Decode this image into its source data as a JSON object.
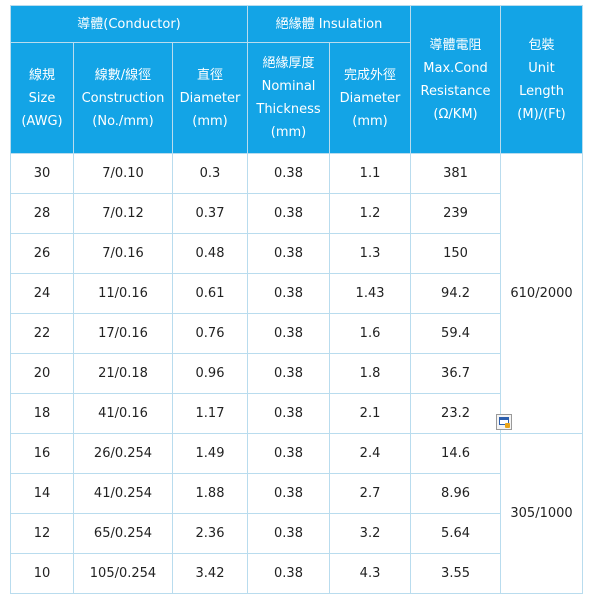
{
  "header": {
    "conductor_group": "導體(Conductor)",
    "insulation_group": "絕緣體 Insulation",
    "resistance": [
      "導體電阻",
      "Max.Cond",
      "Resistance",
      "(Ω/KM)"
    ],
    "unit": [
      "包裝",
      "Unit",
      "Length",
      "(M)/(Ft)"
    ],
    "size": [
      "線規",
      "Size",
      "(AWG)"
    ],
    "construction": [
      "線數/線徑",
      "Construction",
      "(No./mm)"
    ],
    "diameter": [
      "直徑",
      "Diameter",
      "(mm)"
    ],
    "thickness": [
      "絕緣厚度",
      "Nominal",
      "Thickness",
      "(mm)"
    ],
    "outer_diameter": [
      "完成外徑",
      "Diameter",
      "(mm)"
    ]
  },
  "rows": [
    [
      "30",
      "7/0.10",
      "0.3",
      "0.38",
      "1.1",
      "381"
    ],
    [
      "28",
      "7/0.12",
      "0.37",
      "0.38",
      "1.2",
      "239"
    ],
    [
      "26",
      "7/0.16",
      "0.48",
      "0.38",
      "1.3",
      "150"
    ],
    [
      "24",
      "11/0.16",
      "0.61",
      "0.38",
      "1.43",
      "94.2"
    ],
    [
      "22",
      "17/0.16",
      "0.76",
      "0.38",
      "1.6",
      "59.4"
    ],
    [
      "20",
      "21/0.18",
      "0.96",
      "0.38",
      "1.8",
      "36.7"
    ],
    [
      "18",
      "41/0.16",
      "1.17",
      "0.38",
      "2.1",
      "23.2"
    ],
    [
      "16",
      "26/0.254",
      "1.49",
      "0.38",
      "2.4",
      "14.6"
    ],
    [
      "14",
      "41/0.254",
      "1.88",
      "0.38",
      "2.7",
      "8.96"
    ],
    [
      "12",
      "65/0.254",
      "2.36",
      "0.38",
      "3.2",
      "5.64"
    ],
    [
      "10",
      "105/0.254",
      "3.42",
      "0.38",
      "4.3",
      "3.55"
    ]
  ],
  "units": [
    "610/2000",
    "305/1000"
  ],
  "icon": "document-edit-icon"
}
